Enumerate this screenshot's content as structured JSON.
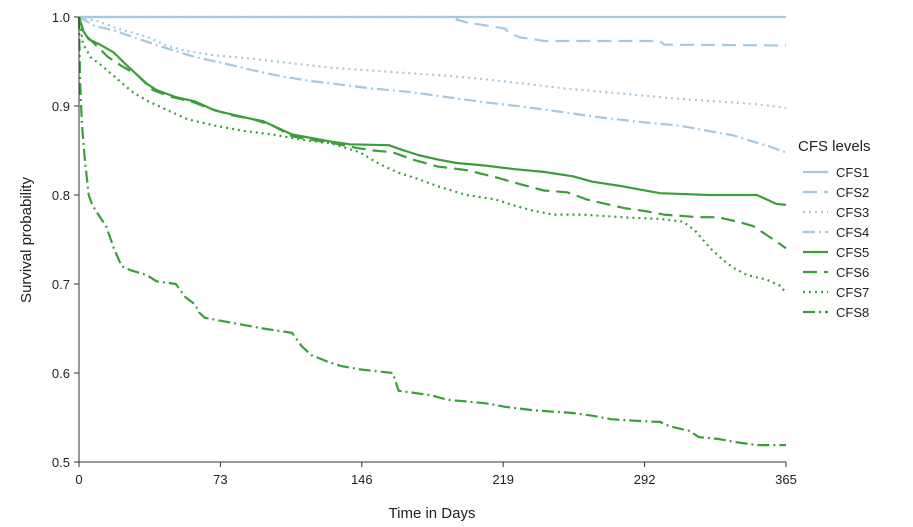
{
  "chart_data": {
    "type": "line",
    "xlabel": "Time in Days",
    "ylabel": "Survival probability",
    "xlim": [
      0,
      365
    ],
    "ylim": [
      0.5,
      1.0
    ],
    "xticks": [
      "0",
      "73",
      "146",
      "219",
      "292",
      "365"
    ],
    "yticks": [
      "0.5",
      "0.6",
      "0.7",
      "0.8",
      "0.9",
      "1.0"
    ],
    "grid": false,
    "legend": {
      "title": "CFS levels",
      "position": "right"
    },
    "series": [
      {
        "name": "CFS1",
        "color": "#a6c8e0",
        "dash": "solid",
        "points": [
          [
            0,
            1.0
          ],
          [
            365,
            1.0
          ]
        ]
      },
      {
        "name": "CFS2",
        "color": "#a6c8e0",
        "dash": "dashed",
        "points": [
          [
            0,
            1.0
          ],
          [
            195,
            1.0
          ],
          [
            195,
            0.997
          ],
          [
            200,
            0.994
          ],
          [
            220,
            0.987
          ],
          [
            222,
            0.982
          ],
          [
            228,
            0.977
          ],
          [
            235,
            0.975
          ],
          [
            240,
            0.973
          ],
          [
            300,
            0.973
          ],
          [
            302,
            0.969
          ],
          [
            365,
            0.968
          ]
        ]
      },
      {
        "name": "CFS3",
        "color": "#a6c8e0",
        "dash": "dotted",
        "points": [
          [
            0,
            1.0
          ],
          [
            10,
            0.995
          ],
          [
            20,
            0.987
          ],
          [
            35,
            0.978
          ],
          [
            45,
            0.968
          ],
          [
            55,
            0.962
          ],
          [
            70,
            0.957
          ],
          [
            90,
            0.953
          ],
          [
            110,
            0.948
          ],
          [
            130,
            0.943
          ],
          [
            150,
            0.94
          ],
          [
            170,
            0.937
          ],
          [
            190,
            0.934
          ],
          [
            210,
            0.93
          ],
          [
            230,
            0.925
          ],
          [
            250,
            0.92
          ],
          [
            270,
            0.916
          ],
          [
            290,
            0.912
          ],
          [
            310,
            0.908
          ],
          [
            330,
            0.905
          ],
          [
            350,
            0.902
          ],
          [
            365,
            0.898
          ]
        ]
      },
      {
        "name": "CFS4",
        "color": "#a6c8e0",
        "dash": "dashdot",
        "points": [
          [
            0,
            1.0
          ],
          [
            8,
            0.99
          ],
          [
            18,
            0.985
          ],
          [
            30,
            0.976
          ],
          [
            45,
            0.965
          ],
          [
            60,
            0.955
          ],
          [
            75,
            0.948
          ],
          [
            90,
            0.94
          ],
          [
            105,
            0.933
          ],
          [
            120,
            0.928
          ],
          [
            135,
            0.924
          ],
          [
            150,
            0.92
          ],
          [
            170,
            0.916
          ],
          [
            190,
            0.91
          ],
          [
            210,
            0.904
          ],
          [
            230,
            0.899
          ],
          [
            250,
            0.893
          ],
          [
            270,
            0.887
          ],
          [
            290,
            0.882
          ],
          [
            310,
            0.878
          ],
          [
            325,
            0.872
          ],
          [
            338,
            0.867
          ],
          [
            348,
            0.86
          ],
          [
            356,
            0.855
          ],
          [
            362,
            0.85
          ],
          [
            365,
            0.848
          ]
        ]
      },
      {
        "name": "CFS5",
        "color": "#3a9e3a",
        "dash": "solid",
        "points": [
          [
            0,
            1.0
          ],
          [
            2,
            0.985
          ],
          [
            5,
            0.975
          ],
          [
            10,
            0.97
          ],
          [
            18,
            0.96
          ],
          [
            25,
            0.945
          ],
          [
            30,
            0.935
          ],
          [
            35,
            0.925
          ],
          [
            40,
            0.918
          ],
          [
            50,
            0.91
          ],
          [
            60,
            0.905
          ],
          [
            70,
            0.895
          ],
          [
            80,
            0.89
          ],
          [
            90,
            0.885
          ],
          [
            95,
            0.883
          ],
          [
            100,
            0.878
          ],
          [
            110,
            0.868
          ],
          [
            120,
            0.864
          ],
          [
            130,
            0.86
          ],
          [
            140,
            0.857
          ],
          [
            160,
            0.856
          ],
          [
            165,
            0.852
          ],
          [
            175,
            0.845
          ],
          [
            185,
            0.84
          ],
          [
            195,
            0.836
          ],
          [
            210,
            0.833
          ],
          [
            225,
            0.829
          ],
          [
            240,
            0.826
          ],
          [
            255,
            0.821
          ],
          [
            265,
            0.815
          ],
          [
            280,
            0.81
          ],
          [
            290,
            0.806
          ],
          [
            300,
            0.802
          ],
          [
            325,
            0.8
          ],
          [
            350,
            0.8
          ],
          [
            360,
            0.79
          ],
          [
            365,
            0.789
          ]
        ]
      },
      {
        "name": "CFS6",
        "color": "#3a9e3a",
        "dash": "dashed",
        "points": [
          [
            0,
            1.0
          ],
          [
            3,
            0.98
          ],
          [
            8,
            0.97
          ],
          [
            15,
            0.955
          ],
          [
            22,
            0.945
          ],
          [
            30,
            0.935
          ],
          [
            38,
            0.918
          ],
          [
            48,
            0.91
          ],
          [
            58,
            0.905
          ],
          [
            68,
            0.897
          ],
          [
            78,
            0.89
          ],
          [
            90,
            0.885
          ],
          [
            100,
            0.878
          ],
          [
            110,
            0.866
          ],
          [
            120,
            0.862
          ],
          [
            132,
            0.858
          ],
          [
            143,
            0.853
          ],
          [
            152,
            0.85
          ],
          [
            162,
            0.848
          ],
          [
            172,
            0.84
          ],
          [
            185,
            0.832
          ],
          [
            200,
            0.828
          ],
          [
            215,
            0.82
          ],
          [
            228,
            0.812
          ],
          [
            240,
            0.805
          ],
          [
            252,
            0.803
          ],
          [
            262,
            0.795
          ],
          [
            272,
            0.79
          ],
          [
            282,
            0.785
          ],
          [
            292,
            0.782
          ],
          [
            302,
            0.778
          ],
          [
            320,
            0.775
          ],
          [
            330,
            0.775
          ],
          [
            340,
            0.77
          ],
          [
            348,
            0.765
          ],
          [
            355,
            0.755
          ],
          [
            360,
            0.748
          ],
          [
            365,
            0.74
          ]
        ]
      },
      {
        "name": "CFS7",
        "color": "#3a9e3a",
        "dash": "dotted",
        "points": [
          [
            0,
            1.0
          ],
          [
            2,
            0.97
          ],
          [
            6,
            0.955
          ],
          [
            12,
            0.945
          ],
          [
            20,
            0.93
          ],
          [
            28,
            0.915
          ],
          [
            36,
            0.905
          ],
          [
            46,
            0.895
          ],
          [
            56,
            0.885
          ],
          [
            70,
            0.878
          ],
          [
            85,
            0.872
          ],
          [
            100,
            0.868
          ],
          [
            115,
            0.862
          ],
          [
            130,
            0.858
          ],
          [
            145,
            0.848
          ],
          [
            155,
            0.835
          ],
          [
            165,
            0.825
          ],
          [
            175,
            0.818
          ],
          [
            185,
            0.81
          ],
          [
            200,
            0.8
          ],
          [
            215,
            0.795
          ],
          [
            225,
            0.788
          ],
          [
            235,
            0.782
          ],
          [
            245,
            0.778
          ],
          [
            260,
            0.778
          ],
          [
            280,
            0.775
          ],
          [
            300,
            0.773
          ],
          [
            312,
            0.77
          ],
          [
            318,
            0.76
          ],
          [
            322,
            0.75
          ],
          [
            326,
            0.74
          ],
          [
            332,
            0.728
          ],
          [
            338,
            0.718
          ],
          [
            345,
            0.71
          ],
          [
            355,
            0.705
          ],
          [
            362,
            0.698
          ],
          [
            365,
            0.69
          ]
        ]
      },
      {
        "name": "CFS8",
        "color": "#3a9e3a",
        "dash": "dashdot",
        "points": [
          [
            0,
            1.0
          ],
          [
            0.5,
            0.93
          ],
          [
            1.5,
            0.88
          ],
          [
            3,
            0.84
          ],
          [
            5,
            0.8
          ],
          [
            7,
            0.788
          ],
          [
            10,
            0.778
          ],
          [
            14,
            0.765
          ],
          [
            18,
            0.74
          ],
          [
            22,
            0.72
          ],
          [
            26,
            0.716
          ],
          [
            35,
            0.71
          ],
          [
            40,
            0.703
          ],
          [
            50,
            0.7
          ],
          [
            55,
            0.685
          ],
          [
            60,
            0.677
          ],
          [
            62,
            0.668
          ],
          [
            65,
            0.662
          ],
          [
            75,
            0.658
          ],
          [
            85,
            0.654
          ],
          [
            95,
            0.65
          ],
          [
            110,
            0.645
          ],
          [
            115,
            0.63
          ],
          [
            120,
            0.62
          ],
          [
            128,
            0.613
          ],
          [
            135,
            0.608
          ],
          [
            145,
            0.604
          ],
          [
            162,
            0.6
          ],
          [
            165,
            0.58
          ],
          [
            172,
            0.578
          ],
          [
            182,
            0.575
          ],
          [
            190,
            0.57
          ],
          [
            210,
            0.566
          ],
          [
            220,
            0.562
          ],
          [
            235,
            0.558
          ],
          [
            255,
            0.555
          ],
          [
            265,
            0.552
          ],
          [
            275,
            0.548
          ],
          [
            290,
            0.546
          ],
          [
            300,
            0.545
          ],
          [
            305,
            0.54
          ],
          [
            315,
            0.535
          ],
          [
            320,
            0.528
          ],
          [
            330,
            0.526
          ],
          [
            340,
            0.522
          ],
          [
            350,
            0.519
          ],
          [
            365,
            0.519
          ]
        ]
      }
    ]
  }
}
